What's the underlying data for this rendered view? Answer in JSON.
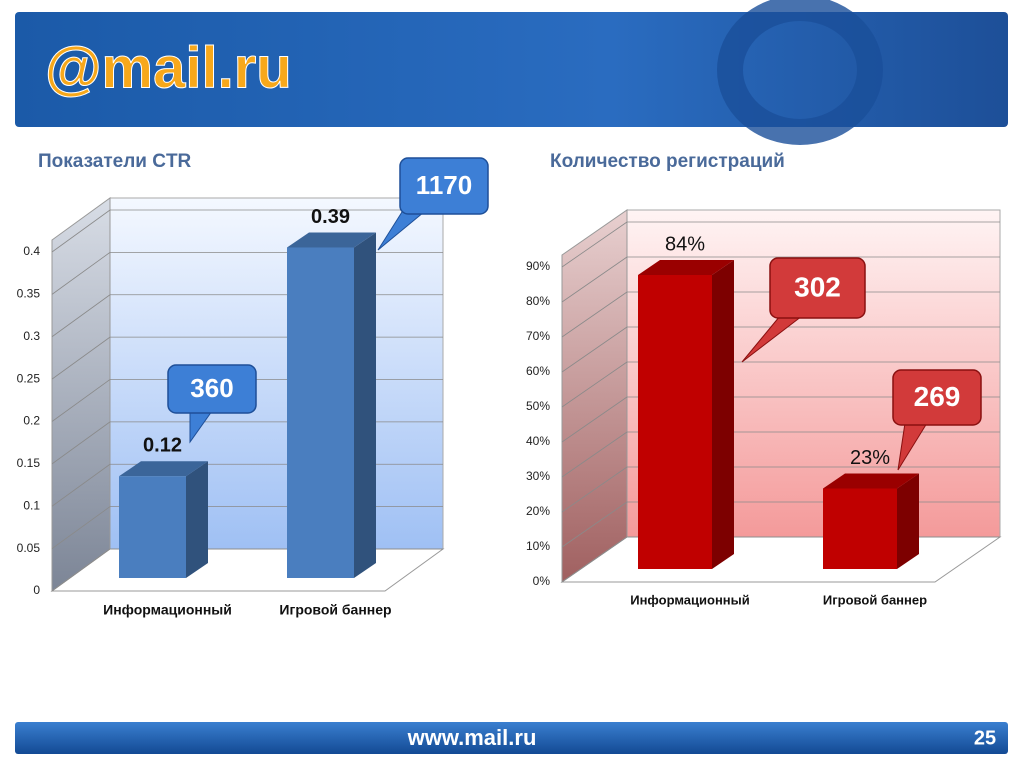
{
  "header": {
    "logo": "@mail.ru"
  },
  "chart_data": [
    {
      "type": "bar",
      "title": "Показатели CTR",
      "categories": [
        "Информационный",
        "Игровой баннер"
      ],
      "values": [
        0.12,
        0.39
      ],
      "color": "#4a7ebf",
      "ylim": [
        0,
        0.4
      ],
      "yticks": [
        0,
        0.05,
        0.1,
        0.15,
        0.2,
        0.25,
        0.3,
        0.35,
        0.4
      ],
      "grid": true,
      "callouts": [
        360,
        1170
      ]
    },
    {
      "type": "bar",
      "title": "Количество регистраций",
      "categories": [
        "Информационный",
        "Игровой баннер"
      ],
      "values": [
        84,
        23
      ],
      "value_labels": [
        "84%",
        "23%"
      ],
      "color": "#c00000",
      "ylim": [
        0,
        90
      ],
      "yticks": [
        {
          "value": 0,
          "label": "0%"
        },
        {
          "value": 10,
          "label": "10%"
        },
        {
          "value": 20,
          "label": "20%"
        },
        {
          "value": 30,
          "label": "30%"
        },
        {
          "value": 40,
          "label": "40%"
        },
        {
          "value": 50,
          "label": "50%"
        },
        {
          "value": 60,
          "label": "60%"
        },
        {
          "value": 70,
          "label": "70%"
        },
        {
          "value": 80,
          "label": "80%"
        },
        {
          "value": 90,
          "label": "90%"
        }
      ],
      "grid": true,
      "callouts": [
        302,
        269
      ]
    }
  ],
  "footer": {
    "url": "www.mail.ru",
    "page": "25"
  }
}
